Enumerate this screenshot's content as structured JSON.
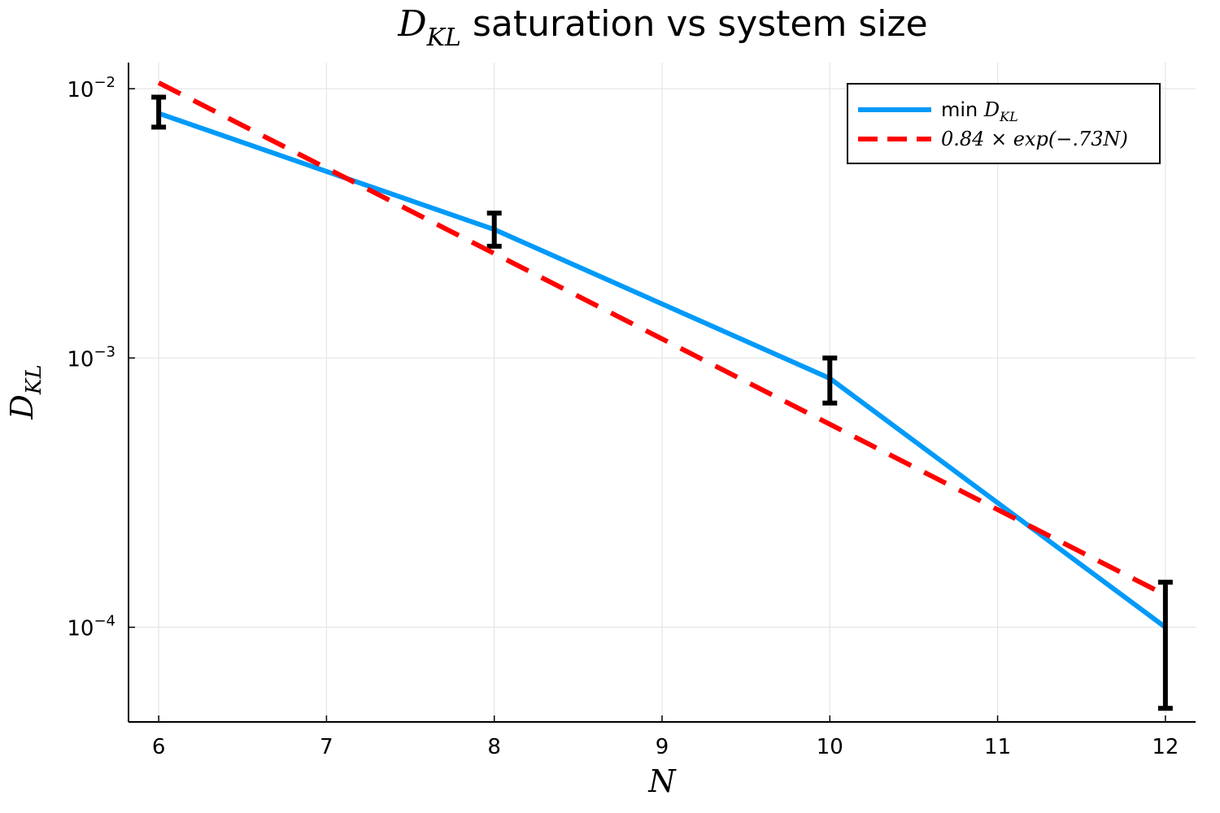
{
  "chart_data": {
    "type": "line",
    "title": {
      "math": "D",
      "math_sub": "KL",
      "text": " saturation vs system size"
    },
    "xlabel": "N",
    "ylabel": {
      "math": "D",
      "math_sub": "KL"
    },
    "xlim": [
      5.82,
      12.18
    ],
    "ylim": [
      4.45e-05,
      0.0125
    ],
    "yscale": "log",
    "grid": true,
    "legend_position": "top-right",
    "x_ticks": [
      {
        "value": 6,
        "label": "6"
      },
      {
        "value": 7,
        "label": "7"
      },
      {
        "value": 8,
        "label": "8"
      },
      {
        "value": 9,
        "label": "9"
      },
      {
        "value": 10,
        "label": "10"
      },
      {
        "value": 11,
        "label": "11"
      },
      {
        "value": 12,
        "label": "12"
      }
    ],
    "y_ticks": [
      {
        "value": 0.01,
        "base": "10",
        "exp": "−2"
      },
      {
        "value": 0.001,
        "base": "10",
        "exp": "−3"
      },
      {
        "value": 0.0001,
        "base": "10",
        "exp": "−4"
      }
    ],
    "series": [
      {
        "name": {
          "text": "min ",
          "math": "D",
          "math_sub": "KL"
        },
        "color": "#009af9",
        "style": "solid",
        "x": [
          6,
          8,
          10,
          12
        ],
        "y": [
          0.0081,
          0.003,
          0.00084,
          0.0001
        ],
        "error_bars": [
          [
            0.0072,
            0.0093
          ],
          [
            0.0026,
            0.00345
          ],
          [
            0.00068,
            0.001
          ],
          [
            5e-05,
            0.000147
          ]
        ],
        "error_bar_color": "#000000"
      },
      {
        "name": {
          "text": "0.84 × exp(−.73N)"
        },
        "color": "#ff0000",
        "style": "dashed",
        "function": {
          "a": 0.84,
          "b": 0.73
        },
        "x_range": [
          6,
          12
        ]
      }
    ]
  }
}
